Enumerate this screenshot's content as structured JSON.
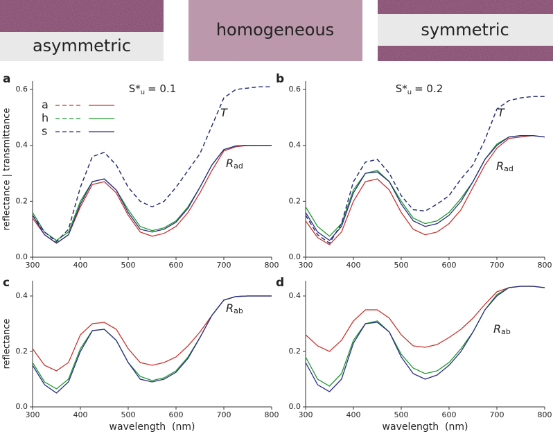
{
  "header": [
    "asymmetric",
    "homogeneous",
    "symmetric"
  ],
  "chart_data": [
    {
      "type": "line",
      "panel": "a",
      "title": "S*",
      "title_sub": "u",
      "title_value": "= 0.1",
      "ylabel": "reflectance | transmittance",
      "annotations": [
        {
          "text": "T"
        },
        {
          "text": "R",
          "sub": "ad"
        }
      ],
      "x": [
        300,
        325,
        350,
        375,
        400,
        425,
        450,
        475,
        500,
        525,
        550,
        575,
        600,
        625,
        650,
        675,
        700,
        725,
        750,
        775,
        800
      ],
      "xlim": [
        300,
        800
      ],
      "ylim": [
        0,
        0.63
      ],
      "xticks": [
        300,
        400,
        500,
        600,
        700,
        800
      ],
      "yticks": [
        {
          "value": 0,
          "label": "0.0"
        },
        0.2,
        0.4,
        0.6
      ],
      "legend": true,
      "series": [
        {
          "name": "a",
          "color": "#c8332e",
          "values": [
            0.14,
            0.08,
            0.05,
            0.08,
            0.18,
            0.26,
            0.27,
            0.23,
            0.15,
            0.09,
            0.075,
            0.085,
            0.11,
            0.16,
            0.23,
            0.31,
            0.38,
            0.395,
            0.4,
            0.4,
            0.4
          ],
          "values_T": [
            0.15,
            0.09,
            0.055,
            0.1,
            0.25,
            0.36,
            0.375,
            0.33,
            0.25,
            0.2,
            0.18,
            0.2,
            0.25,
            0.31,
            0.37,
            0.47,
            0.57,
            0.6,
            0.605,
            0.61,
            0.61
          ]
        },
        {
          "name": "h",
          "color": "#1a9a2a",
          "values": [
            0.16,
            0.09,
            0.06,
            0.09,
            0.2,
            0.27,
            0.28,
            0.24,
            0.17,
            0.11,
            0.095,
            0.105,
            0.13,
            0.18,
            0.25,
            0.33,
            0.385,
            0.398,
            0.4,
            0.4,
            0.4
          ],
          "values_T": [
            0.15,
            0.09,
            0.055,
            0.1,
            0.25,
            0.36,
            0.375,
            0.33,
            0.25,
            0.2,
            0.18,
            0.2,
            0.25,
            0.31,
            0.37,
            0.47,
            0.57,
            0.6,
            0.605,
            0.61,
            0.61
          ]
        },
        {
          "name": "s",
          "color": "#2a2a8a",
          "values": [
            0.15,
            0.08,
            0.05,
            0.08,
            0.19,
            0.27,
            0.28,
            0.24,
            0.16,
            0.1,
            0.09,
            0.1,
            0.125,
            0.175,
            0.25,
            0.33,
            0.385,
            0.398,
            0.4,
            0.4,
            0.4
          ],
          "values_T": [
            0.15,
            0.09,
            0.055,
            0.1,
            0.25,
            0.36,
            0.375,
            0.33,
            0.25,
            0.2,
            0.18,
            0.2,
            0.25,
            0.31,
            0.37,
            0.47,
            0.57,
            0.6,
            0.605,
            0.61,
            0.61
          ]
        }
      ]
    },
    {
      "type": "line",
      "panel": "b",
      "title": "S*",
      "title_sub": "u",
      "title_value": "= 0.2",
      "annotations": [
        {
          "text": "T"
        },
        {
          "text": "R",
          "sub": "ad"
        }
      ],
      "x": [
        300,
        325,
        350,
        375,
        400,
        425,
        450,
        475,
        500,
        525,
        550,
        575,
        600,
        625,
        650,
        675,
        700,
        725,
        750,
        775,
        800
      ],
      "xlim": [
        300,
        800
      ],
      "ylim": [
        0,
        0.63
      ],
      "xticks": [
        300,
        400,
        500,
        600,
        700,
        800
      ],
      "yticks": [
        {
          "value": 0,
          "label": "0.0"
        },
        0.2,
        0.4,
        0.6
      ],
      "series": [
        {
          "name": "a",
          "color": "#c8332e",
          "values": [
            0.13,
            0.07,
            0.045,
            0.09,
            0.2,
            0.27,
            0.28,
            0.24,
            0.16,
            0.1,
            0.08,
            0.09,
            0.12,
            0.17,
            0.25,
            0.33,
            0.39,
            0.425,
            0.43,
            0.435,
            0.43
          ],
          "values_T": [
            0.15,
            0.08,
            0.05,
            0.12,
            0.27,
            0.34,
            0.35,
            0.3,
            0.22,
            0.17,
            0.165,
            0.19,
            0.22,
            0.28,
            0.33,
            0.42,
            0.53,
            0.56,
            0.57,
            0.575,
            0.575
          ]
        },
        {
          "name": "h",
          "color": "#1a9a2a",
          "values": [
            0.18,
            0.11,
            0.075,
            0.12,
            0.24,
            0.3,
            0.31,
            0.27,
            0.2,
            0.14,
            0.12,
            0.13,
            0.16,
            0.21,
            0.27,
            0.35,
            0.405,
            0.43,
            0.435,
            0.435,
            0.43
          ],
          "values_T": [
            0.15,
            0.08,
            0.05,
            0.12,
            0.27,
            0.34,
            0.35,
            0.3,
            0.22,
            0.17,
            0.165,
            0.19,
            0.22,
            0.28,
            0.33,
            0.42,
            0.53,
            0.56,
            0.57,
            0.575,
            0.575
          ]
        },
        {
          "name": "s",
          "color": "#2a2a8a",
          "values": [
            0.16,
            0.09,
            0.06,
            0.11,
            0.23,
            0.3,
            0.305,
            0.27,
            0.19,
            0.13,
            0.11,
            0.12,
            0.15,
            0.2,
            0.27,
            0.35,
            0.4,
            0.43,
            0.435,
            0.435,
            0.43
          ],
          "values_T": [
            0.15,
            0.08,
            0.05,
            0.12,
            0.27,
            0.34,
            0.35,
            0.3,
            0.22,
            0.17,
            0.165,
            0.19,
            0.22,
            0.28,
            0.33,
            0.42,
            0.53,
            0.56,
            0.57,
            0.575,
            0.575
          ]
        }
      ]
    },
    {
      "type": "line",
      "panel": "c",
      "ylabel": "reflectance",
      "xlabel": "wavelength  (nm)",
      "annotations": [
        {
          "text": "R",
          "sub": "ab"
        }
      ],
      "x": [
        300,
        325,
        350,
        375,
        400,
        425,
        450,
        475,
        500,
        525,
        550,
        575,
        600,
        625,
        650,
        675,
        700,
        725,
        750,
        775,
        800
      ],
      "xlim": [
        300,
        800
      ],
      "ylim": [
        0,
        0.455
      ],
      "xticks": [
        300,
        400,
        500,
        600,
        700,
        800
      ],
      "yticks": [
        {
          "value": 0,
          "label": "0.0"
        },
        0.2,
        0.4
      ],
      "series": [
        {
          "name": "a",
          "color": "#c8332e",
          "values": [
            0.21,
            0.15,
            0.13,
            0.16,
            0.26,
            0.3,
            0.305,
            0.28,
            0.21,
            0.16,
            0.15,
            0.16,
            0.18,
            0.22,
            0.27,
            0.33,
            0.385,
            0.398,
            0.4,
            0.4,
            0.4
          ]
        },
        {
          "name": "h",
          "color": "#1a9a2a",
          "values": [
            0.16,
            0.09,
            0.065,
            0.1,
            0.21,
            0.275,
            0.28,
            0.24,
            0.16,
            0.11,
            0.095,
            0.105,
            0.13,
            0.18,
            0.25,
            0.33,
            0.385,
            0.398,
            0.4,
            0.4,
            0.4
          ]
        },
        {
          "name": "s",
          "color": "#2a2a8a",
          "values": [
            0.15,
            0.08,
            0.05,
            0.09,
            0.2,
            0.275,
            0.28,
            0.24,
            0.16,
            0.1,
            0.09,
            0.1,
            0.125,
            0.175,
            0.25,
            0.33,
            0.385,
            0.398,
            0.4,
            0.4,
            0.4
          ]
        }
      ]
    },
    {
      "type": "line",
      "panel": "d",
      "xlabel": "wavelength  (nm)",
      "annotations": [
        {
          "text": "R",
          "sub": "ab"
        }
      ],
      "x": [
        300,
        325,
        350,
        375,
        400,
        425,
        450,
        475,
        500,
        525,
        550,
        575,
        600,
        625,
        650,
        675,
        700,
        725,
        750,
        775,
        800
      ],
      "xlim": [
        300,
        800
      ],
      "ylim": [
        0,
        0.455
      ],
      "xticks": [
        300,
        400,
        500,
        600,
        700,
        800
      ],
      "yticks": [
        {
          "value": 0,
          "label": "0.0"
        },
        0.2,
        0.4
      ],
      "series": [
        {
          "name": "a",
          "color": "#c8332e",
          "values": [
            0.26,
            0.22,
            0.2,
            0.24,
            0.31,
            0.35,
            0.35,
            0.32,
            0.26,
            0.22,
            0.215,
            0.225,
            0.25,
            0.28,
            0.32,
            0.37,
            0.415,
            0.43,
            0.435,
            0.435,
            0.43
          ]
        },
        {
          "name": "h",
          "color": "#1a9a2a",
          "values": [
            0.18,
            0.1,
            0.075,
            0.12,
            0.24,
            0.3,
            0.31,
            0.27,
            0.19,
            0.14,
            0.12,
            0.13,
            0.16,
            0.21,
            0.27,
            0.35,
            0.405,
            0.43,
            0.435,
            0.435,
            0.43
          ]
        },
        {
          "name": "s",
          "color": "#2a2a8a",
          "values": [
            0.16,
            0.08,
            0.055,
            0.1,
            0.23,
            0.3,
            0.305,
            0.27,
            0.18,
            0.12,
            0.1,
            0.115,
            0.15,
            0.2,
            0.27,
            0.35,
            0.4,
            0.43,
            0.435,
            0.435,
            0.43
          ]
        }
      ]
    }
  ]
}
